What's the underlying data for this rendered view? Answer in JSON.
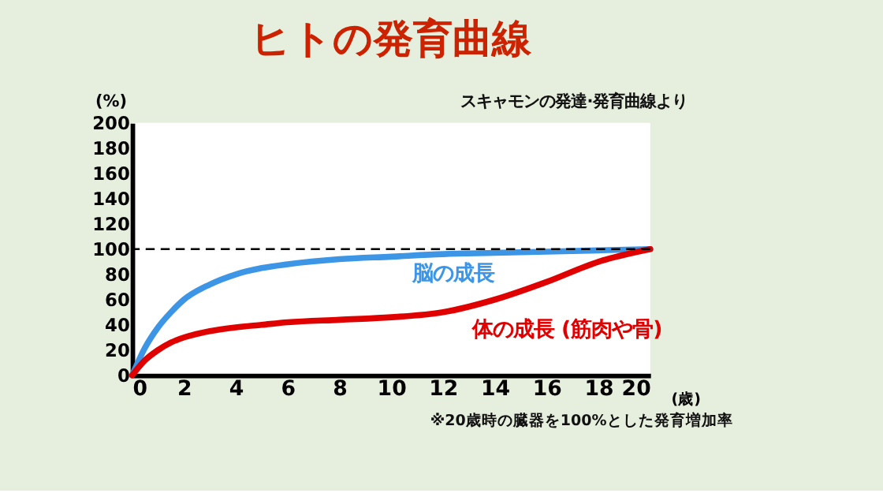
{
  "chart_data": {
    "type": "line",
    "title": "ヒトの発育曲線",
    "ylabel": "(%)",
    "xlabel": "(歳)",
    "x": [
      0,
      0.5,
      1,
      1.5,
      2,
      3,
      4,
      5,
      6,
      8,
      10,
      12,
      14,
      16,
      18,
      20
    ],
    "series": [
      {
        "name": "脳の成長",
        "color": "#3d95e6",
        "values": [
          0,
          22,
          38,
          50,
          60,
          72,
          80,
          85,
          88,
          92,
          94,
          96,
          97,
          98,
          99,
          100
        ]
      },
      {
        "name": "体の成長 (筋肉や骨)",
        "color": "#e00000",
        "values": [
          0,
          12,
          20,
          26,
          30,
          35,
          38,
          40,
          42,
          44,
          46,
          50,
          60,
          74,
          90,
          100
        ]
      }
    ],
    "xlim": [
      0,
      20
    ],
    "xticks": [
      0,
      2,
      4,
      6,
      8,
      10,
      12,
      14,
      16,
      18,
      20
    ],
    "ylim": [
      0,
      200
    ],
    "yticks": [
      0,
      20,
      40,
      60,
      80,
      100,
      120,
      140,
      160,
      180,
      200
    ],
    "grid": false,
    "legend": false,
    "marker": "none",
    "line_style": "solid",
    "ref_lines": [
      {
        "axis": "y",
        "value": 100,
        "line_style": "dashed",
        "color": "#000000"
      }
    ],
    "annotations": [
      "スキャモンの発達·発育曲線より",
      "※20歳時の臓器を100%とした発育増加率"
    ]
  }
}
